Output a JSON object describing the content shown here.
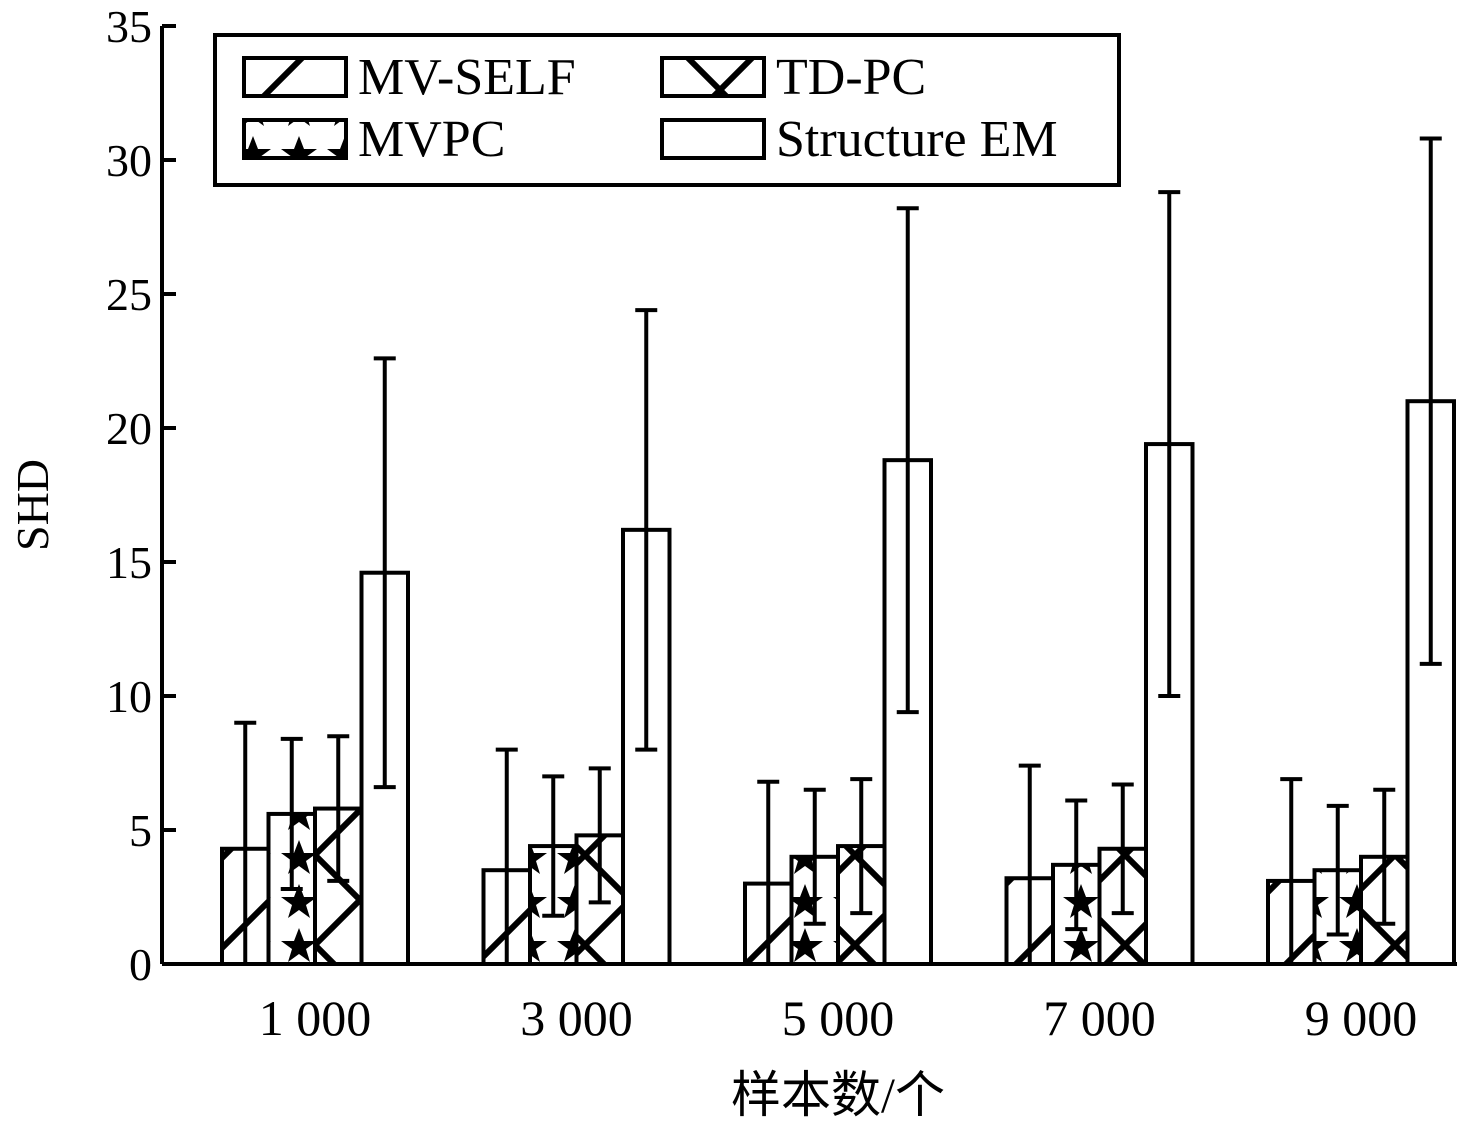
{
  "chart_data": {
    "type": "bar",
    "xlabel": "样本数/个",
    "ylabel": "SHD",
    "ylim": [
      0,
      35
    ],
    "yticks": [
      0,
      5,
      10,
      15,
      20,
      25,
      30,
      35
    ],
    "categories": [
      "1 000",
      "3 000",
      "5 000",
      "7 000",
      "9 000"
    ],
    "grid": false,
    "legend_position": "top-left",
    "error_bars": true,
    "series": [
      {
        "name": "MV-SELF",
        "pattern": "diagonal-hatch",
        "values": [
          4.3,
          3.5,
          3.0,
          3.2,
          3.1
        ],
        "errors": [
          4.7,
          4.5,
          3.8,
          4.2,
          3.8
        ]
      },
      {
        "name": "MVPC",
        "pattern": "stars",
        "values": [
          5.6,
          4.4,
          4.0,
          3.7,
          3.5
        ],
        "errors": [
          2.8,
          2.6,
          2.5,
          2.4,
          2.4
        ]
      },
      {
        "name": "TD-PC",
        "pattern": "cross-hatch",
        "values": [
          5.8,
          4.8,
          4.4,
          4.3,
          4.0
        ],
        "errors": [
          2.7,
          2.5,
          2.5,
          2.4,
          2.5
        ]
      },
      {
        "name": "Structure EM",
        "pattern": "blank",
        "values": [
          14.6,
          16.2,
          18.8,
          19.4,
          21.0
        ],
        "errors": [
          8.0,
          8.2,
          9.4,
          9.4,
          9.8
        ]
      }
    ]
  }
}
